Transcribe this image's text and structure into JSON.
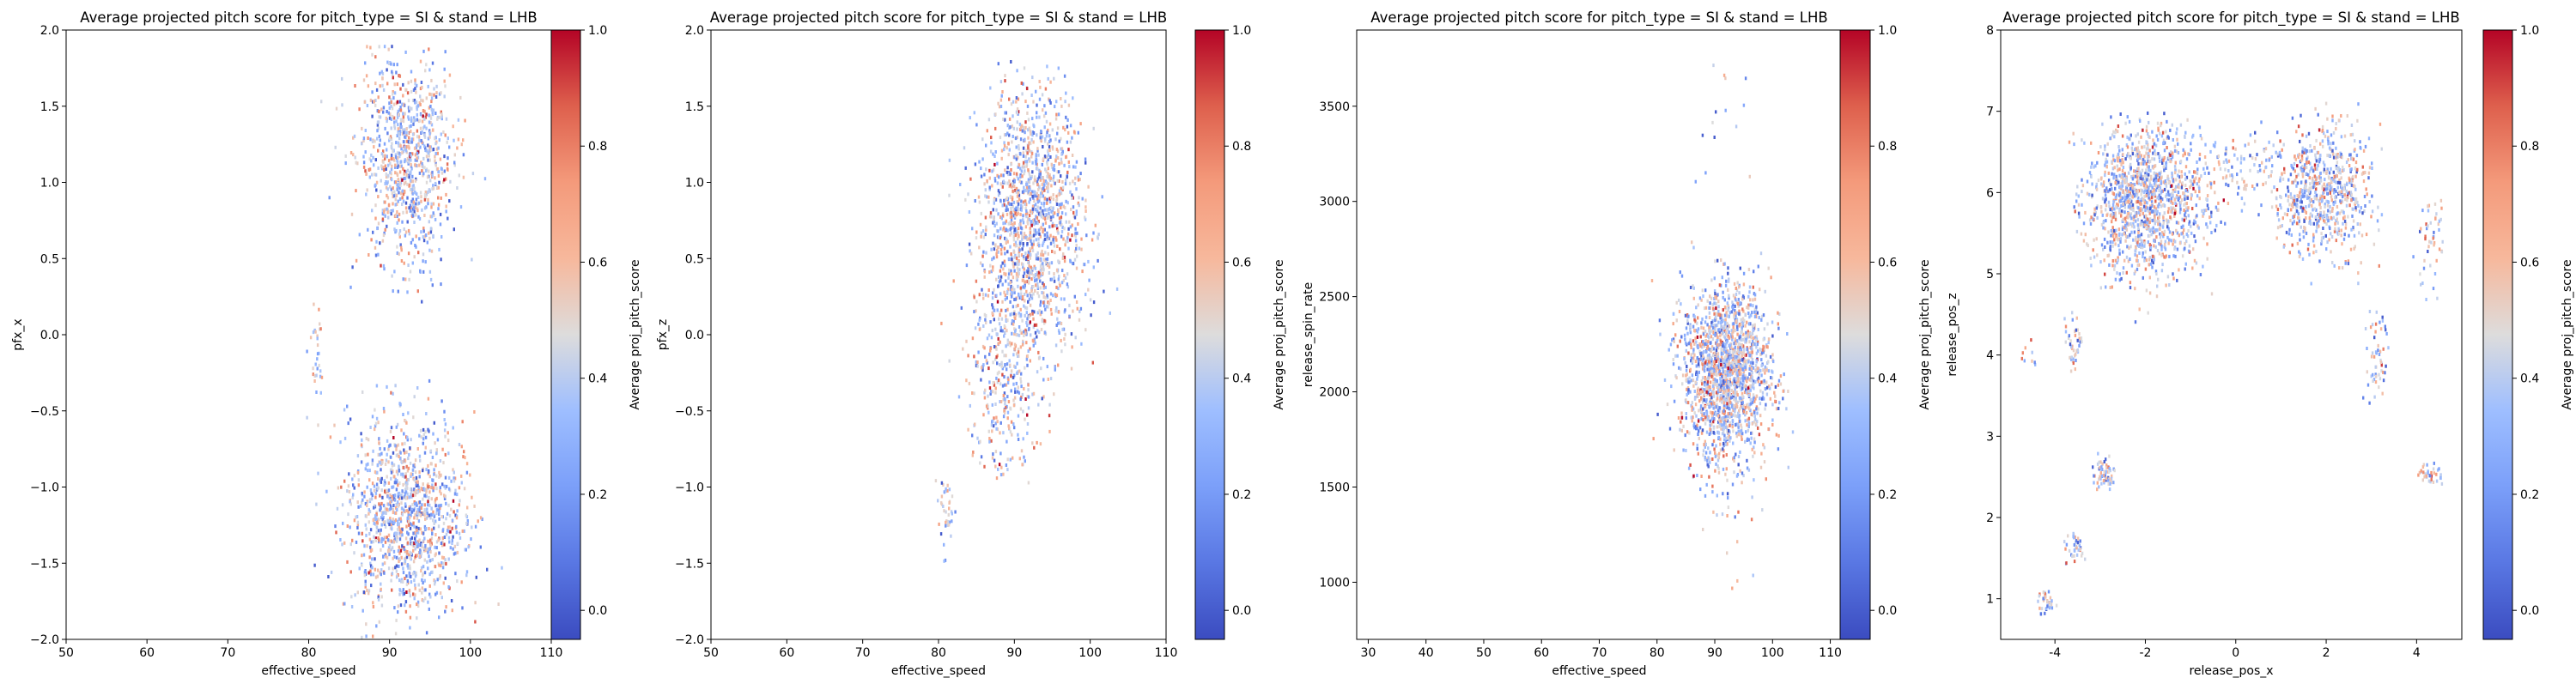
{
  "chart_data": [
    {
      "type": "scatter",
      "title": "Average projected pitch score for pitch_type = SI & stand = LHB",
      "xlabel": "effective_speed",
      "ylabel": "pfx_x",
      "xlim": [
        50,
        110
      ],
      "ylim": [
        -2.0,
        2.0
      ],
      "xticks": [
        "50",
        "60",
        "70",
        "80",
        "90",
        "100",
        "110"
      ],
      "yticks": [
        "-2.0",
        "-1.5",
        "-1.0",
        "-0.5",
        "0.0",
        "0.5",
        "1.0",
        "1.5",
        "2.0"
      ],
      "colorbar": {
        "label": "Average proj_pitch_score",
        "ticks": [
          "0.0",
          "0.2",
          "0.4",
          "0.6",
          "0.8",
          "1.0"
        ],
        "range": [
          -0.05,
          1.0
        ],
        "colormap": "coolwarm"
      },
      "grid": false,
      "clusters": [
        {
          "x_center": 92,
          "y_center": 1.15,
          "x_sd": 3.0,
          "y_sd": 0.33,
          "count": 900,
          "x_range": [
            80,
            104
          ],
          "y_range": [
            0.2,
            1.9
          ]
        },
        {
          "x_center": 92,
          "y_center": -1.2,
          "x_sd": 3.6,
          "y_sd": 0.33,
          "count": 1200,
          "x_range": [
            73,
            104
          ],
          "y_range": [
            -2.0,
            -0.3
          ]
        },
        {
          "x_center": 81,
          "y_center": -0.15,
          "x_sd": 0.5,
          "y_sd": 0.2,
          "count": 35,
          "x_range": [
            79,
            83
          ],
          "y_range": [
            -0.6,
            0.2
          ]
        }
      ]
    },
    {
      "type": "scatter",
      "title": "Average projected pitch score for pitch_type = SI & stand = LHB",
      "xlabel": "effective_speed",
      "ylabel": "pfx_z",
      "xlim": [
        50,
        110
      ],
      "ylim": [
        -2.0,
        2.0
      ],
      "xticks": [
        "50",
        "60",
        "70",
        "80",
        "90",
        "100",
        "110"
      ],
      "yticks": [
        "-2.0",
        "-1.5",
        "-1.0",
        "-0.5",
        "0.0",
        "0.5",
        "1.0",
        "1.5",
        "2.0"
      ],
      "colorbar": {
        "label": "Average proj_pitch_score",
        "ticks": [
          "0.0",
          "0.2",
          "0.4",
          "0.6",
          "0.8",
          "1.0"
        ],
        "range": [
          -0.05,
          1.0
        ],
        "colormap": "coolwarm"
      },
      "grid": false,
      "clusters": [
        {
          "x_center": 92,
          "y_center": 0.75,
          "x_sd": 3.5,
          "y_sd": 0.45,
          "count": 1500,
          "x_range": [
            74,
            104
          ],
          "y_range": [
            -0.3,
            1.8
          ]
        },
        {
          "x_center": 89,
          "y_center": -0.3,
          "x_sd": 2.5,
          "y_sd": 0.35,
          "count": 350,
          "x_range": [
            80,
            100
          ],
          "y_range": [
            -1.0,
            0.3
          ]
        },
        {
          "x_center": 81,
          "y_center": -1.15,
          "x_sd": 0.6,
          "y_sd": 0.12,
          "count": 40,
          "x_range": [
            79,
            83
          ],
          "y_range": [
            -1.6,
            -0.9
          ]
        }
      ]
    },
    {
      "type": "scatter",
      "title": "Average projected pitch score for pitch_type = SI & stand = LHB",
      "xlabel": "effective_speed",
      "ylabel": "release_spin_rate",
      "xlim": [
        28,
        112
      ],
      "ylim": [
        700,
        3900
      ],
      "xticks": [
        "30",
        "40",
        "50",
        "60",
        "70",
        "80",
        "90",
        "100",
        "110"
      ],
      "yticks": [
        "1000",
        "1500",
        "2000",
        "2500",
        "3000",
        "3500"
      ],
      "colorbar": {
        "label": "Average proj_pitch_score",
        "ticks": [
          "0.0",
          "0.2",
          "0.4",
          "0.6",
          "0.8",
          "1.0"
        ],
        "range": [
          -0.05,
          1.0
        ],
        "colormap": "coolwarm"
      },
      "grid": false,
      "clusters": [
        {
          "x_center": 92,
          "y_center": 2100,
          "x_sd": 3.8,
          "y_sd": 230,
          "count": 1800,
          "x_range": [
            70,
            104
          ],
          "y_range": [
            1300,
            2900
          ]
        },
        {
          "x_center": 92,
          "y_center": 1250,
          "x_sd": 3.5,
          "y_sd": 200,
          "count": 25,
          "x_range": [
            82,
            102
          ],
          "y_range": [
            800,
            1600
          ]
        },
        {
          "x_center": 92,
          "y_center": 3300,
          "x_sd": 3.0,
          "y_sd": 300,
          "count": 18,
          "x_range": [
            84,
            99
          ],
          "y_range": [
            2900,
            3750
          ]
        }
      ]
    },
    {
      "type": "scatter",
      "title": "Average projected pitch score for pitch_type = SI & stand = LHB",
      "xlabel": "release_pos_x",
      "ylabel": "release_pos_z",
      "xlim": [
        -5.2,
        5.0
      ],
      "ylim": [
        0.5,
        8.0
      ],
      "xticks": [
        "-4",
        "-2",
        "0",
        "2",
        "4"
      ],
      "yticks": [
        "1",
        "2",
        "3",
        "4",
        "5",
        "6",
        "7",
        "8"
      ],
      "colorbar": {
        "label": "Average proj_pitch_score",
        "ticks": [
          "0.0",
          "0.2",
          "0.4",
          "0.6",
          "0.8",
          "1.0"
        ],
        "range": [
          -0.05,
          1.0
        ],
        "colormap": "coolwarm"
      },
      "grid": false,
      "clusters": [
        {
          "x_center": -2.0,
          "y_center": 5.9,
          "x_sd": 0.65,
          "y_sd": 0.45,
          "count": 1300,
          "x_range": [
            -3.7,
            -0.3
          ],
          "y_range": [
            4.3,
            7.0
          ]
        },
        {
          "x_center": 0.0,
          "y_center": 6.3,
          "x_sd": 0.7,
          "y_sd": 0.25,
          "count": 150,
          "x_range": [
            -1.0,
            1.0
          ],
          "y_range": [
            5.5,
            6.9
          ]
        },
        {
          "x_center": 1.9,
          "y_center": 6.0,
          "x_sd": 0.55,
          "y_sd": 0.4,
          "count": 700,
          "x_range": [
            0.8,
            3.3
          ],
          "y_range": [
            4.8,
            7.2
          ]
        },
        {
          "x_center": 4.3,
          "y_center": 5.4,
          "x_sd": 0.2,
          "y_sd": 0.3,
          "count": 60,
          "x_range": [
            3.8,
            4.6
          ],
          "y_range": [
            4.6,
            5.9
          ]
        },
        {
          "x_center": 3.1,
          "y_center": 3.9,
          "x_sd": 0.15,
          "y_sd": 0.3,
          "count": 60,
          "x_range": [
            2.8,
            3.4
          ],
          "y_range": [
            3.4,
            4.8
          ]
        },
        {
          "x_center": -2.9,
          "y_center": 2.55,
          "x_sd": 0.15,
          "y_sd": 0.12,
          "count": 60,
          "x_range": [
            -3.2,
            -2.5
          ],
          "y_range": [
            2.2,
            3.1
          ]
        },
        {
          "x_center": -3.55,
          "y_center": 1.65,
          "x_sd": 0.12,
          "y_sd": 0.1,
          "count": 40,
          "x_range": [
            -3.8,
            -3.3
          ],
          "y_range": [
            1.4,
            1.9
          ]
        },
        {
          "x_center": -4.15,
          "y_center": 0.95,
          "x_sd": 0.12,
          "y_sd": 0.08,
          "count": 40,
          "x_range": [
            -4.4,
            -3.9
          ],
          "y_range": [
            0.8,
            1.2
          ]
        },
        {
          "x_center": 4.3,
          "y_center": 2.55,
          "x_sd": 0.15,
          "y_sd": 0.08,
          "count": 40,
          "x_range": [
            4.0,
            4.6
          ],
          "y_range": [
            2.4,
            2.7
          ]
        },
        {
          "x_center": -3.6,
          "y_center": 4.1,
          "x_sd": 0.12,
          "y_sd": 0.2,
          "count": 50,
          "x_range": [
            -3.8,
            -3.4
          ],
          "y_range": [
            3.8,
            4.6
          ]
        },
        {
          "x_center": -4.6,
          "y_center": 4.0,
          "x_sd": 0.12,
          "y_sd": 0.1,
          "count": 10,
          "x_range": [
            -4.8,
            -4.4
          ],
          "y_range": [
            3.8,
            4.2
          ]
        }
      ]
    }
  ]
}
